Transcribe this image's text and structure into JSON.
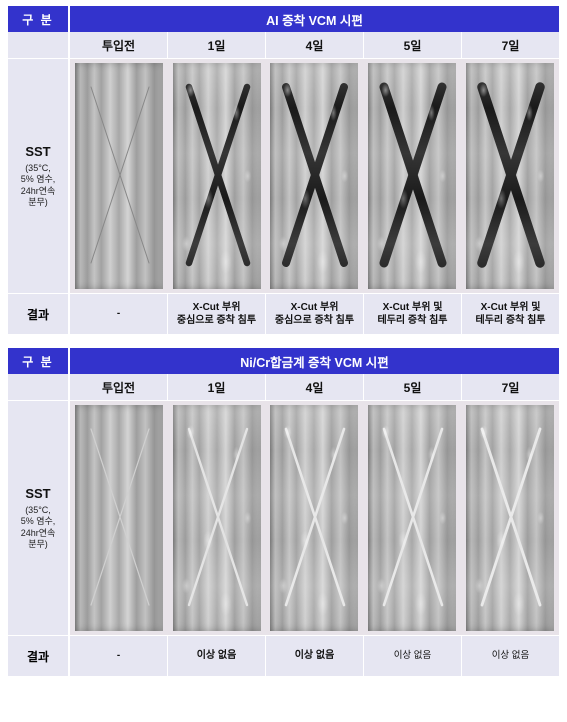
{
  "panels": [
    {
      "header_left": "구 분",
      "header_right": "AI 증착 VCM 시편",
      "columns": [
        "투입전",
        "1일",
        "4일",
        "5일",
        "7일"
      ],
      "test_name": "SST",
      "test_condition": "(35°C,\n5% 염수,\n24hr연속\n분무)",
      "result_label": "결과",
      "results": [
        "-",
        "X-Cut 부위\n중심으로 증착 침투",
        "X-Cut 부위\n중심으로 증착 침투",
        "X-Cut 부위 및\n테두리 증착 침투",
        "X-Cut 부위 및\n테두리 증착 침투"
      ],
      "samples": [
        {
          "wet": false,
          "cut_color": "#888888",
          "cut_width": 1.0,
          "corroded": false
        },
        {
          "wet": true,
          "cut_color": "#1a1a1a",
          "cut_width": 6.5,
          "corroded": true
        },
        {
          "wet": true,
          "cut_color": "#1a1a1a",
          "cut_width": 8.0,
          "corroded": true
        },
        {
          "wet": true,
          "cut_color": "#1a1a1a",
          "cut_width": 9.0,
          "corroded": true
        },
        {
          "wet": true,
          "cut_color": "#1a1a1a",
          "cut_width": 9.5,
          "corroded": true
        }
      ]
    },
    {
      "header_left": "구 분",
      "header_right": "Ni/Cr합금계 증착 VCM 시편",
      "columns": [
        "투입전",
        "1일",
        "4일",
        "5일",
        "7일"
      ],
      "test_name": "SST",
      "test_condition": "(35°C,\n5% 염수,\n24hr연속\n분무)",
      "result_label": "결과",
      "results": [
        "-",
        "이상 없음",
        "이상 없음",
        "이상 없음",
        "이상 없음"
      ],
      "result_small": [
        false,
        false,
        false,
        true,
        true
      ],
      "samples": [
        {
          "wet": false,
          "cut_color": "#d0d0d0",
          "cut_width": 1.2,
          "corroded": false
        },
        {
          "wet": true,
          "cut_color": "#e2e2e2",
          "cut_width": 2.4,
          "corroded": false
        },
        {
          "wet": true,
          "cut_color": "#e6e6e6",
          "cut_width": 2.6,
          "corroded": false
        },
        {
          "wet": true,
          "cut_color": "#e6e6e6",
          "cut_width": 2.6,
          "corroded": false
        },
        {
          "wet": true,
          "cut_color": "#e8e8e8",
          "cut_width": 2.8,
          "corroded": false
        }
      ]
    }
  ],
  "colors": {
    "header_bg": "#3333cc",
    "header_fg": "#ffffff",
    "cell_bg": "#e6e6f2",
    "body_bg": "#e8e3e9"
  }
}
